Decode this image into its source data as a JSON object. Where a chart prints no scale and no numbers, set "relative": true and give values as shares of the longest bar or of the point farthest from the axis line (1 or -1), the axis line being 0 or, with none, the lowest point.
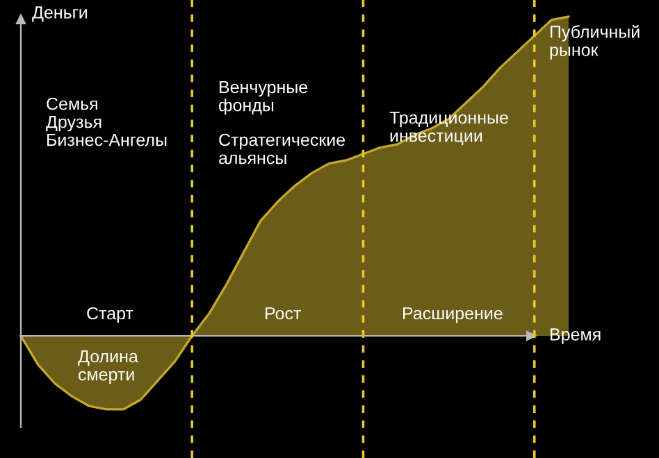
{
  "chart_data": {
    "type": "area",
    "relative": true,
    "xlabel": "Время",
    "ylabel": "Деньги",
    "categories": [
      null,
      null,
      null,
      null,
      null,
      null,
      null,
      null,
      null,
      null,
      null,
      null,
      null,
      null,
      null,
      null,
      null,
      null,
      null,
      null,
      null,
      null,
      null,
      null,
      null,
      null,
      null,
      null,
      null,
      null,
      null,
      null,
      null
    ],
    "series": [
      {
        "color": "#c2a82c",
        "values": [
          0,
          -0.09,
          -0.15,
          -0.19,
          -0.22,
          -0.23,
          -0.23,
          -0.2,
          -0.14,
          -0.08,
          0,
          0.07,
          0.16,
          0.26,
          0.36,
          0.42,
          0.47,
          0.51,
          0.54,
          0.55,
          0.57,
          0.59,
          0.6,
          0.63,
          0.65,
          0.68,
          0.73,
          0.78,
          0.84,
          0.89,
          0.94,
          0.99,
          1
        ]
      }
    ],
    "annotations": [
      "Семья\nДрузья\nБизнес-Ангелы",
      "Венчурные\nфонды",
      "Стратегические\nальянсы",
      "Традиционные\nинвестиции",
      "Публичный\nрынок",
      "Старт",
      "Рост",
      "Расширение",
      "Долина\nсмерти"
    ],
    "legend": false,
    "grid": "x"
  }
}
